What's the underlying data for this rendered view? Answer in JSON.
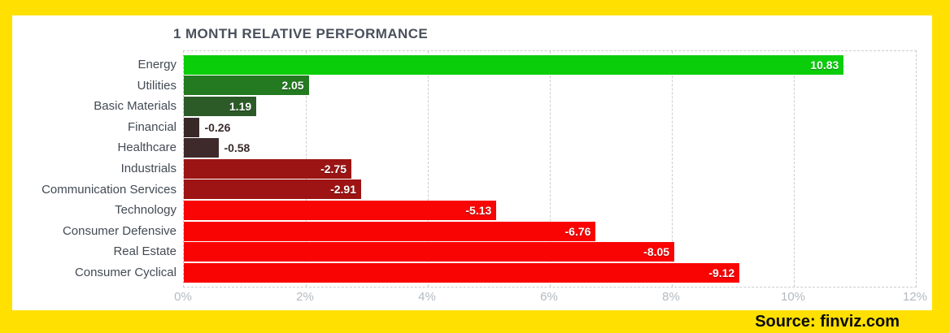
{
  "frame": {
    "border_color": "#FFE000",
    "source_label": "Source: finviz.com"
  },
  "chart_data": {
    "type": "bar",
    "orientation": "horizontal",
    "title": "1 MONTH RELATIVE PERFORMANCE",
    "categories": [
      "Energy",
      "Utilities",
      "Basic Materials",
      "Financial",
      "Healthcare",
      "Industrials",
      "Communication Services",
      "Technology",
      "Consumer Defensive",
      "Real Estate",
      "Consumer Cyclical"
    ],
    "values": [
      10.83,
      2.05,
      1.19,
      -0.26,
      -0.58,
      -2.75,
      -2.91,
      -5.13,
      -6.76,
      -8.05,
      -9.12
    ],
    "bar_colors": [
      "#0BCE0B",
      "#237A20",
      "#2C5B28",
      "#382828",
      "#3E2A2A",
      "#9B1515",
      "#9E1313",
      "#F90505",
      "#FA0303",
      "#FA0303",
      "#FA0303"
    ],
    "x_ticks": [
      "0%",
      "2%",
      "4%",
      "6%",
      "8%",
      "10%",
      "12%"
    ],
    "xlabel": "",
    "ylabel": "",
    "xlim": [
      0,
      12
    ],
    "axis_unit": "%",
    "grid": "vertical-dashed",
    "legend": "none",
    "value_labels": "abs-length bars; white labels inside bars, dark labels outside when bar shorter than 1%"
  }
}
